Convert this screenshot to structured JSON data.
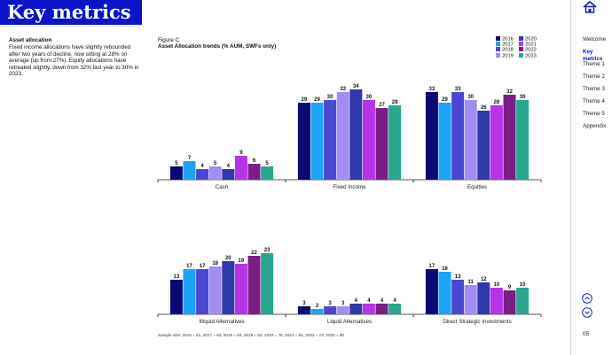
{
  "header": {
    "title": "Key metrics"
  },
  "intro": {
    "heading": "Asset allocation",
    "body": "Fixed income allocations have slightly rebounded after two years of decline, now sitting at 28% on average (up from 27%). Equity allocations have retreated slightly, down from 32% last year to 30% in 2023."
  },
  "figure": {
    "label": "Figure C",
    "title": "Asset Allocation trends (% AUM, SWFs only)",
    "sample": "Sample size: 2016 = 51, 2017 = 62, 2018 = 63, 2019 = 53, 2020 = 78, 2021 = 54, 2022 = 74, 2023 = 80."
  },
  "nav": {
    "home_icon": "home-icon",
    "items": [
      "Welcome",
      "Key metrics",
      "Theme 1",
      "Theme 2",
      "Theme 3",
      "Theme 4",
      "Theme 5",
      "Appendix"
    ],
    "active_index": 1,
    "up_icon": "chevron-up-icon",
    "down_icon": "chevron-down-icon",
    "page_number": "05"
  },
  "colors": {
    "brand": "#0a14c8"
  },
  "chart_data": {
    "type": "bar",
    "title": "Asset Allocation trends (% AUM, SWFs only)",
    "series": [
      {
        "name": "2016",
        "color": "#0b0a73"
      },
      {
        "name": "2017",
        "color": "#1ea2f5"
      },
      {
        "name": "2018",
        "color": "#4a47d2"
      },
      {
        "name": "2019",
        "color": "#a18ef2"
      },
      {
        "name": "2020",
        "color": "#2f39a9"
      },
      {
        "name": "2021",
        "color": "#b634e8"
      },
      {
        "name": "2022",
        "color": "#7a1e85"
      },
      {
        "name": "2023",
        "color": "#2aa690"
      }
    ],
    "categories": [
      "Cash",
      "Fixed Income",
      "Equities",
      "Illiquid Alternatives",
      "Liquid Alternatives",
      "Direct Strategic Investments"
    ],
    "values": [
      [
        5,
        7,
        4,
        5,
        4,
        9,
        6,
        5
      ],
      [
        29,
        29,
        30,
        33,
        34,
        30,
        27,
        28
      ],
      [
        33,
        29,
        33,
        30,
        26,
        28,
        32,
        30
      ],
      [
        13,
        17,
        17,
        18,
        20,
        19,
        22,
        23
      ],
      [
        3,
        2,
        3,
        3,
        4,
        4,
        4,
        4
      ],
      [
        17,
        16,
        13,
        11,
        12,
        10,
        9,
        10
      ]
    ],
    "legend_position": "top-right",
    "grid": false
  }
}
